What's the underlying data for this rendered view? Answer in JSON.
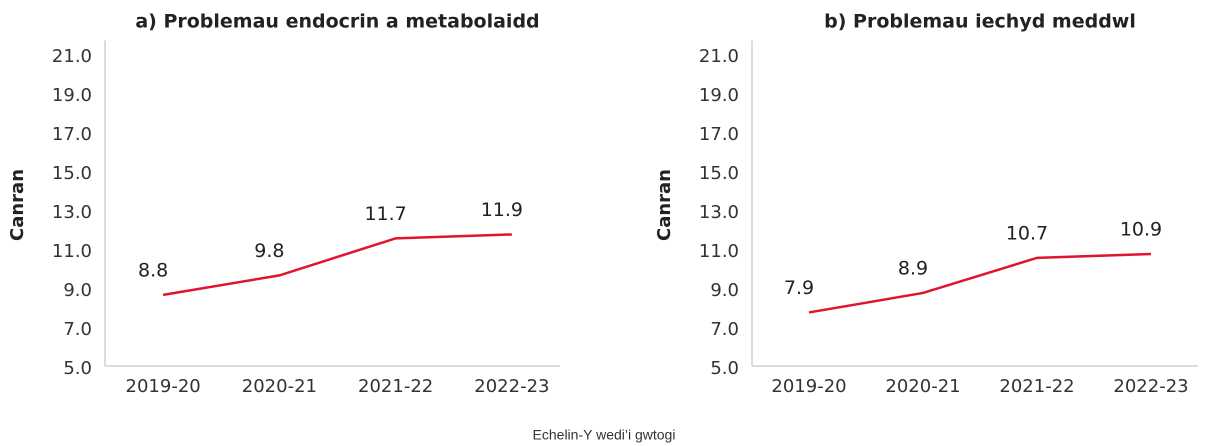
{
  "chart_data": [
    {
      "type": "line",
      "title": "a) Problemau endocrin a metabolaidd",
      "y_label": "Canran",
      "categories": [
        "2019-20",
        "2020-21",
        "2021-22",
        "2022-23"
      ],
      "series": [
        {
          "color": "#e0142f",
          "values": [
            8.8,
            9.8,
            11.7,
            11.9
          ]
        }
      ],
      "ylim": [
        5,
        22
      ],
      "yticks": [
        {
          "value": 5,
          "label": "5.0"
        },
        {
          "value": 7,
          "label": "7.0"
        },
        {
          "value": 9,
          "label": "9.0"
        },
        {
          "value": 11,
          "label": "11.0"
        },
        {
          "value": 13,
          "label": "13.0"
        },
        {
          "value": 15,
          "label": "15.0"
        },
        {
          "value": 17,
          "label": "17.0"
        },
        {
          "value": 19,
          "label": "19.0"
        },
        {
          "value": 21,
          "label": "21.0"
        }
      ]
    },
    {
      "type": "line",
      "title": "b) Problemau iechyd meddwl",
      "y_label": "Canran",
      "categories": [
        "2019-20",
        "2020-21",
        "2021-22",
        "2022-23"
      ],
      "series": [
        {
          "color": "#e0142f",
          "values": [
            7.9,
            8.9,
            10.7,
            10.9
          ]
        }
      ],
      "ylim": [
        5,
        22
      ],
      "yticks": [
        {
          "value": 5,
          "label": "5.0"
        },
        {
          "value": 7,
          "label": "7.0"
        },
        {
          "value": 9,
          "label": "9.0"
        },
        {
          "value": 11,
          "label": "11.0"
        },
        {
          "value": 13,
          "label": "13.0"
        },
        {
          "value": 15,
          "label": "15.0"
        },
        {
          "value": 17,
          "label": "17.0"
        },
        {
          "value": 19,
          "label": "19.0"
        },
        {
          "value": 21,
          "label": "21.0"
        }
      ]
    }
  ],
  "footnote": "Echelin-Y wedi’i gwtogi"
}
